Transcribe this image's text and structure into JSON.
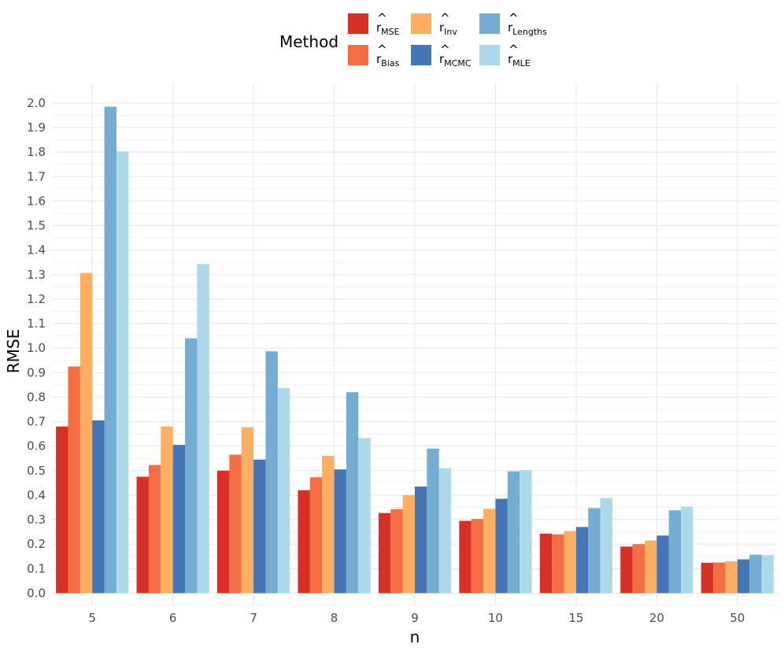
{
  "chart_data": {
    "type": "bar",
    "title": "",
    "xlabel": "n",
    "ylabel": "RMSE",
    "ylim": [
      -0.05,
      2.08
    ],
    "yticks": [
      "0.0",
      "0.1",
      "0.2",
      "0.3",
      "0.4",
      "0.5",
      "0.6",
      "0.7",
      "0.8",
      "0.9",
      "1.0",
      "1.1",
      "1.2",
      "1.3",
      "1.4",
      "1.5",
      "1.6",
      "1.7",
      "1.8",
      "1.9",
      "2.0"
    ],
    "categories": [
      "5",
      "6",
      "7",
      "8",
      "9",
      "10",
      "15",
      "20",
      "50"
    ],
    "legend": {
      "title": "Method",
      "position": "top"
    },
    "series": [
      {
        "name": "r_MSE",
        "base": "r",
        "sub": "MSE",
        "color": "#d73027",
        "values": [
          0.68,
          0.475,
          0.5,
          0.42,
          0.327,
          0.295,
          0.243,
          0.19,
          0.124
        ]
      },
      {
        "name": "r_Bias",
        "base": "r",
        "sub": "Bias",
        "color": "#f46d43",
        "values": [
          0.925,
          0.523,
          0.565,
          0.473,
          0.343,
          0.303,
          0.24,
          0.2,
          0.125
        ]
      },
      {
        "name": "r_Inv",
        "base": "r",
        "sub": "Inv",
        "color": "#fdae61",
        "values": [
          1.307,
          0.68,
          0.677,
          0.56,
          0.4,
          0.344,
          0.253,
          0.215,
          0.13
        ]
      },
      {
        "name": "r_MCMC",
        "base": "r",
        "sub": "MCMC",
        "color": "#4575b4",
        "values": [
          0.705,
          0.605,
          0.545,
          0.505,
          0.435,
          0.385,
          0.27,
          0.235,
          0.138
        ]
      },
      {
        "name": "r_Lengths",
        "base": "r",
        "sub": "Lengths",
        "color": "#74add1",
        "values": [
          1.985,
          1.04,
          0.987,
          0.82,
          0.59,
          0.497,
          0.347,
          0.338,
          0.157
        ]
      },
      {
        "name": "r_MLE",
        "base": "r",
        "sub": "MLE",
        "color": "#abd9e9",
        "values": [
          1.803,
          1.343,
          0.837,
          0.633,
          0.51,
          0.502,
          0.388,
          0.353,
          0.155
        ]
      }
    ]
  }
}
